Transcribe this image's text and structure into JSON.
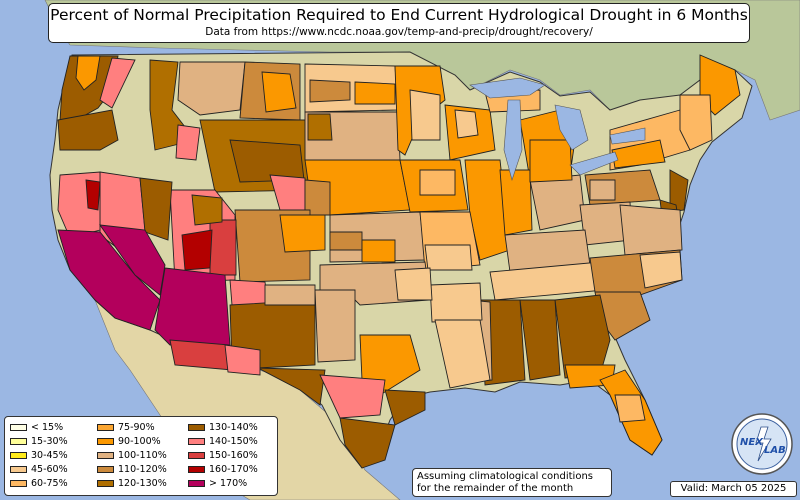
{
  "title": "Percent of Normal Precipitation Required to End Current Hydrological Drought in 6 Months",
  "subtitle": "Data from https://www.ncdc.noaa.gov/temp-and-precip/drought/recovery/",
  "legend": [
    {
      "label": "< 15%",
      "color": "#ffffe6"
    },
    {
      "label": "15-30%",
      "color": "#ffff99"
    },
    {
      "label": "30-45%",
      "color": "#ffeb1a"
    },
    {
      "label": "45-60%",
      "color": "#f7c98e"
    },
    {
      "label": "60-75%",
      "color": "#fdb863"
    },
    {
      "label": "75-90%",
      "color": "#fba632"
    },
    {
      "label": "90-100%",
      "color": "#fb9800"
    },
    {
      "label": "100-110%",
      "color": "#e0b282"
    },
    {
      "label": "110-120%",
      "color": "#cc8a3c"
    },
    {
      "label": "120-130%",
      "color": "#b06f00"
    },
    {
      "label": "130-140%",
      "color": "#9c5c00"
    },
    {
      "label": "140-150%",
      "color": "#ff7f7f"
    },
    {
      "label": "150-160%",
      "color": "#d93f3f"
    },
    {
      "label": "160-170%",
      "color": "#b30000"
    },
    {
      "label": "> 170%",
      "color": "#b3005c"
    }
  ],
  "note": {
    "line1": "Assuming climatological conditions",
    "line2": "for the remainder of the month"
  },
  "valid": "Valid: March 05 2025",
  "logo": {
    "line1": "NEX",
    "line2": "LAB"
  },
  "colors": {
    "ocean": "#9bb7e3",
    "land": "#d9d6a8",
    "canada": "#b9c79a",
    "mexico": "#e3d6a6",
    "border": "#222222"
  }
}
